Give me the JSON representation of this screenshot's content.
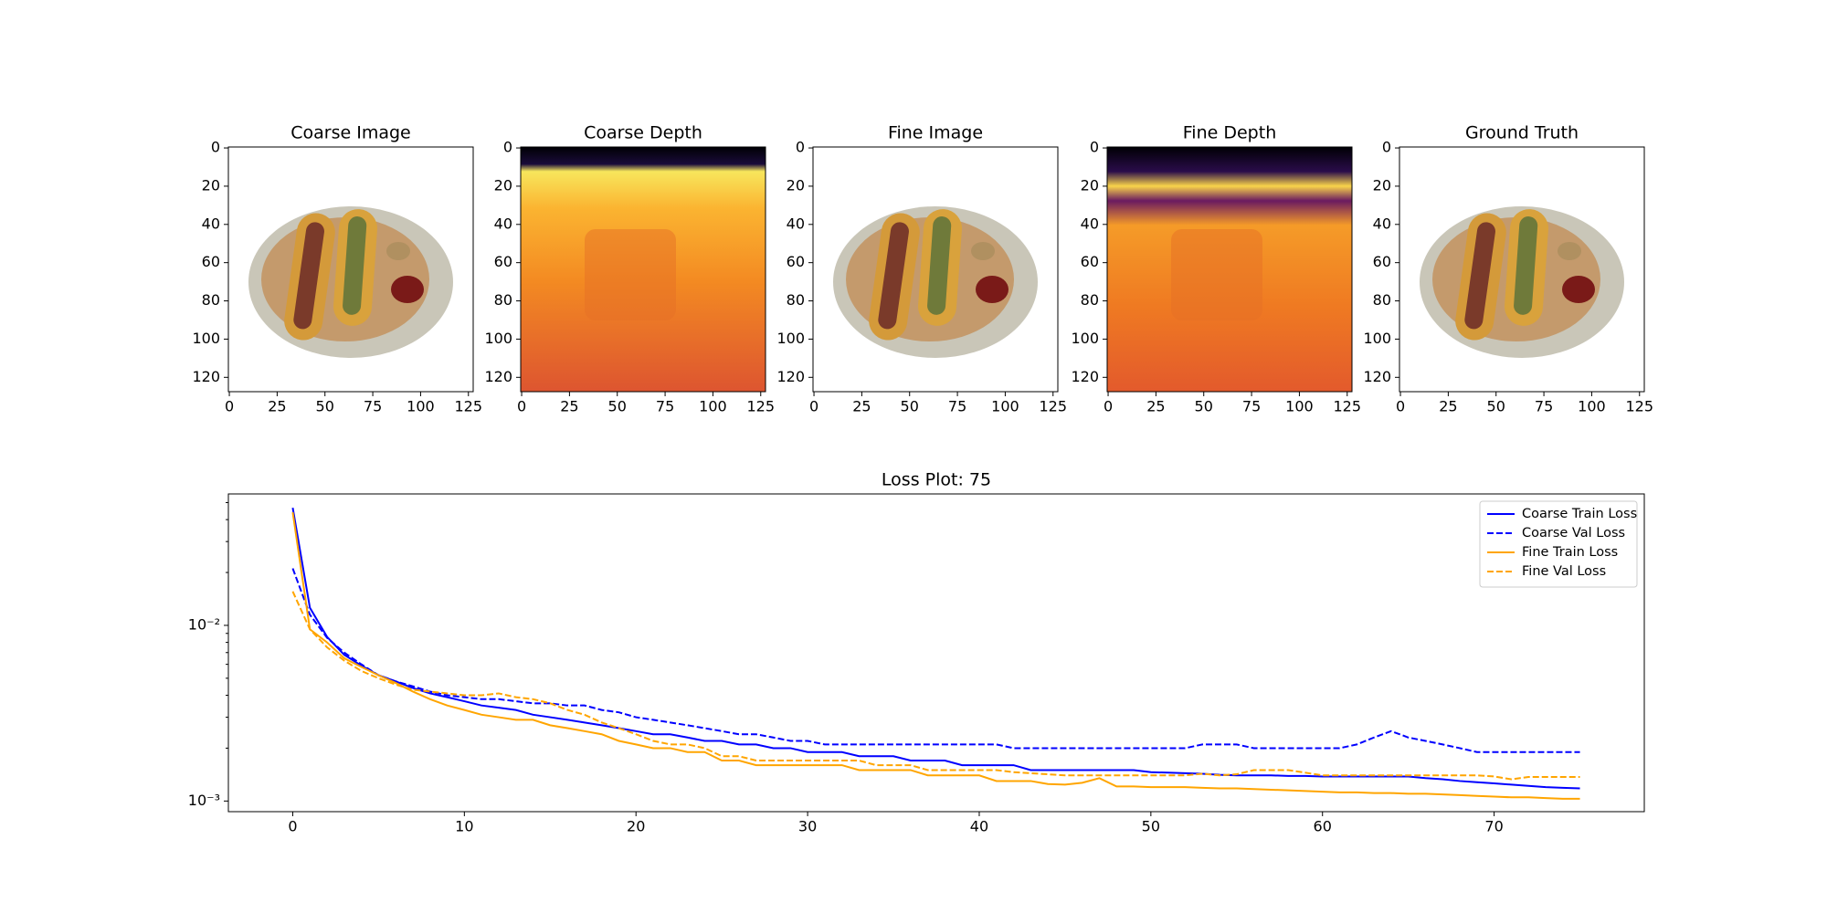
{
  "chart_data": [
    {
      "type": "image",
      "title": "Coarse Image",
      "xlim": [
        -0.5,
        127.5
      ],
      "ylim": [
        127.5,
        -0.5
      ],
      "xticks": [
        0,
        25,
        50,
        75,
        100,
        125
      ],
      "yticks": [
        0,
        20,
        40,
        60,
        80,
        100,
        120
      ]
    },
    {
      "type": "image",
      "title": "Coarse Depth",
      "xlim": [
        -0.5,
        127.5
      ],
      "ylim": [
        127.5,
        -0.5
      ],
      "xticks": [
        0,
        25,
        50,
        75,
        100,
        125
      ],
      "yticks": [
        0,
        20,
        40,
        60,
        80,
        100,
        120
      ]
    },
    {
      "type": "image",
      "title": "Fine Image",
      "xlim": [
        -0.5,
        127.5
      ],
      "ylim": [
        127.5,
        -0.5
      ],
      "xticks": [
        0,
        25,
        50,
        75,
        100,
        125
      ],
      "yticks": [
        0,
        20,
        40,
        60,
        80,
        100,
        120
      ]
    },
    {
      "type": "image",
      "title": "Fine Depth",
      "xlim": [
        -0.5,
        127.5
      ],
      "ylim": [
        127.5,
        -0.5
      ],
      "xticks": [
        0,
        25,
        50,
        75,
        100,
        125
      ],
      "yticks": [
        0,
        20,
        40,
        60,
        80,
        100,
        120
      ]
    },
    {
      "type": "image",
      "title": "Ground Truth",
      "xlim": [
        -0.5,
        127.5
      ],
      "ylim": [
        127.5,
        -0.5
      ],
      "xticks": [
        0,
        25,
        50,
        75,
        100,
        125
      ],
      "yticks": [
        0,
        20,
        40,
        60,
        80,
        100,
        120
      ]
    },
    {
      "type": "line",
      "title": "Loss Plot: 75",
      "log_y": true,
      "legend": "upper right",
      "xlim": [
        -3.75,
        78.75
      ],
      "xticks": [
        0,
        10,
        20,
        30,
        40,
        50,
        60,
        70
      ],
      "ylim": [
        0.00087,
        0.056
      ],
      "yticks": [
        {
          "value": 0.001,
          "label": "10⁻³"
        },
        {
          "value": 0.01,
          "label": "10⁻²"
        }
      ],
      "yminorticks": [
        0.002,
        0.003,
        0.004,
        0.005,
        0.006,
        0.007,
        0.008,
        0.009,
        0.02,
        0.03,
        0.04,
        0.05
      ],
      "x": [
        0,
        1,
        2,
        3,
        4,
        5,
        6,
        7,
        8,
        9,
        10,
        11,
        12,
        13,
        14,
        15,
        16,
        17,
        18,
        19,
        20,
        21,
        22,
        23,
        24,
        25,
        26,
        27,
        28,
        29,
        30,
        31,
        32,
        33,
        34,
        35,
        36,
        37,
        38,
        39,
        40,
        41,
        42,
        43,
        44,
        45,
        46,
        47,
        48,
        49,
        50,
        51,
        52,
        53,
        54,
        55,
        56,
        57,
        58,
        59,
        60,
        61,
        62,
        63,
        64,
        65,
        66,
        67,
        68,
        69,
        70,
        71,
        72,
        73,
        74,
        75
      ],
      "series": [
        {
          "name": "Coarse Train Loss",
          "color": "#0000ff",
          "linestyle": "solid",
          "values": [
            0.0467,
            0.0126,
            0.0086,
            0.0068,
            0.0059,
            0.0052,
            0.0048,
            0.0044,
            0.0041,
            0.0039,
            0.0037,
            0.0035,
            0.0034,
            0.0033,
            0.0031,
            0.003,
            0.0029,
            0.0028,
            0.0027,
            0.0026,
            0.0025,
            0.0024,
            0.0024,
            0.0023,
            0.0022,
            0.0022,
            0.0021,
            0.0021,
            0.002,
            0.002,
            0.0019,
            0.0019,
            0.0019,
            0.0018,
            0.0018,
            0.0018,
            0.0017,
            0.0017,
            0.0017,
            0.0016,
            0.0016,
            0.0016,
            0.0016,
            0.0015,
            0.0015,
            0.0015,
            0.0015,
            0.0015,
            0.0015,
            0.0015,
            0.00146,
            0.00145,
            0.00144,
            0.00143,
            0.00141,
            0.0014,
            0.0014,
            0.0014,
            0.00139,
            0.00139,
            0.00138,
            0.00138,
            0.00138,
            0.00138,
            0.00138,
            0.00138,
            0.00135,
            0.00133,
            0.0013,
            0.00128,
            0.00126,
            0.00124,
            0.00122,
            0.0012,
            0.00119,
            0.00118
          ]
        },
        {
          "name": "Coarse Val Loss",
          "color": "#0000ff",
          "linestyle": "dashed",
          "values": [
            0.0211,
            0.0115,
            0.0085,
            0.007,
            0.006,
            0.0052,
            0.0048,
            0.0045,
            0.0042,
            0.004,
            0.0039,
            0.0038,
            0.0038,
            0.0037,
            0.0036,
            0.0036,
            0.0035,
            0.0035,
            0.0033,
            0.0032,
            0.003,
            0.0029,
            0.0028,
            0.0027,
            0.0026,
            0.0025,
            0.0024,
            0.0024,
            0.0023,
            0.0022,
            0.0022,
            0.0021,
            0.0021,
            0.0021,
            0.0021,
            0.0021,
            0.0021,
            0.0021,
            0.0021,
            0.0021,
            0.0021,
            0.0021,
            0.002,
            0.002,
            0.002,
            0.002,
            0.002,
            0.002,
            0.002,
            0.002,
            0.002,
            0.002,
            0.002,
            0.0021,
            0.0021,
            0.0021,
            0.002,
            0.002,
            0.002,
            0.002,
            0.002,
            0.002,
            0.0021,
            0.0023,
            0.0025,
            0.0023,
            0.0022,
            0.0021,
            0.002,
            0.0019,
            0.0019,
            0.0019,
            0.0019,
            0.0019,
            0.0019,
            0.0019
          ]
        },
        {
          "name": "Fine Train Loss",
          "color": "#ffa500",
          "linestyle": "solid",
          "values": [
            0.044,
            0.0095,
            0.008,
            0.0065,
            0.0058,
            0.0052,
            0.0047,
            0.0042,
            0.0038,
            0.0035,
            0.0033,
            0.0031,
            0.003,
            0.0029,
            0.0029,
            0.0027,
            0.0026,
            0.0025,
            0.0024,
            0.0022,
            0.0021,
            0.002,
            0.002,
            0.0019,
            0.0019,
            0.0017,
            0.0017,
            0.0016,
            0.0016,
            0.0016,
            0.0016,
            0.0016,
            0.0016,
            0.0015,
            0.0015,
            0.0015,
            0.0015,
            0.0014,
            0.0014,
            0.0014,
            0.0014,
            0.0013,
            0.0013,
            0.0013,
            0.00125,
            0.00124,
            0.00127,
            0.00135,
            0.00121,
            0.00121,
            0.0012,
            0.0012,
            0.0012,
            0.00119,
            0.00118,
            0.00118,
            0.00117,
            0.00116,
            0.00115,
            0.00114,
            0.00113,
            0.00112,
            0.00112,
            0.00111,
            0.00111,
            0.0011,
            0.0011,
            0.00109,
            0.00108,
            0.00107,
            0.00106,
            0.00105,
            0.00105,
            0.00104,
            0.00103,
            0.00103
          ]
        },
        {
          "name": "Fine Val Loss",
          "color": "#ffa500",
          "linestyle": "dashed",
          "values": [
            0.0156,
            0.0095,
            0.0075,
            0.0063,
            0.0055,
            0.005,
            0.0046,
            0.0043,
            0.0042,
            0.0041,
            0.004,
            0.004,
            0.0041,
            0.0039,
            0.0038,
            0.0036,
            0.0033,
            0.0031,
            0.0028,
            0.0026,
            0.0024,
            0.0022,
            0.0021,
            0.0021,
            0.002,
            0.0018,
            0.0018,
            0.0017,
            0.0017,
            0.0017,
            0.0017,
            0.0017,
            0.0017,
            0.0017,
            0.0016,
            0.0016,
            0.0016,
            0.0015,
            0.0015,
            0.0015,
            0.0015,
            0.0015,
            0.00146,
            0.00144,
            0.00142,
            0.0014,
            0.0014,
            0.0014,
            0.0014,
            0.0014,
            0.0014,
            0.0014,
            0.0014,
            0.00143,
            0.0014,
            0.00142,
            0.0015,
            0.0015,
            0.0015,
            0.00145,
            0.0014,
            0.0014,
            0.0014,
            0.0014,
            0.0014,
            0.0014,
            0.0014,
            0.0014,
            0.0014,
            0.0014,
            0.00138,
            0.00133,
            0.00137,
            0.00137,
            0.00137,
            0.00137
          ]
        }
      ]
    }
  ]
}
